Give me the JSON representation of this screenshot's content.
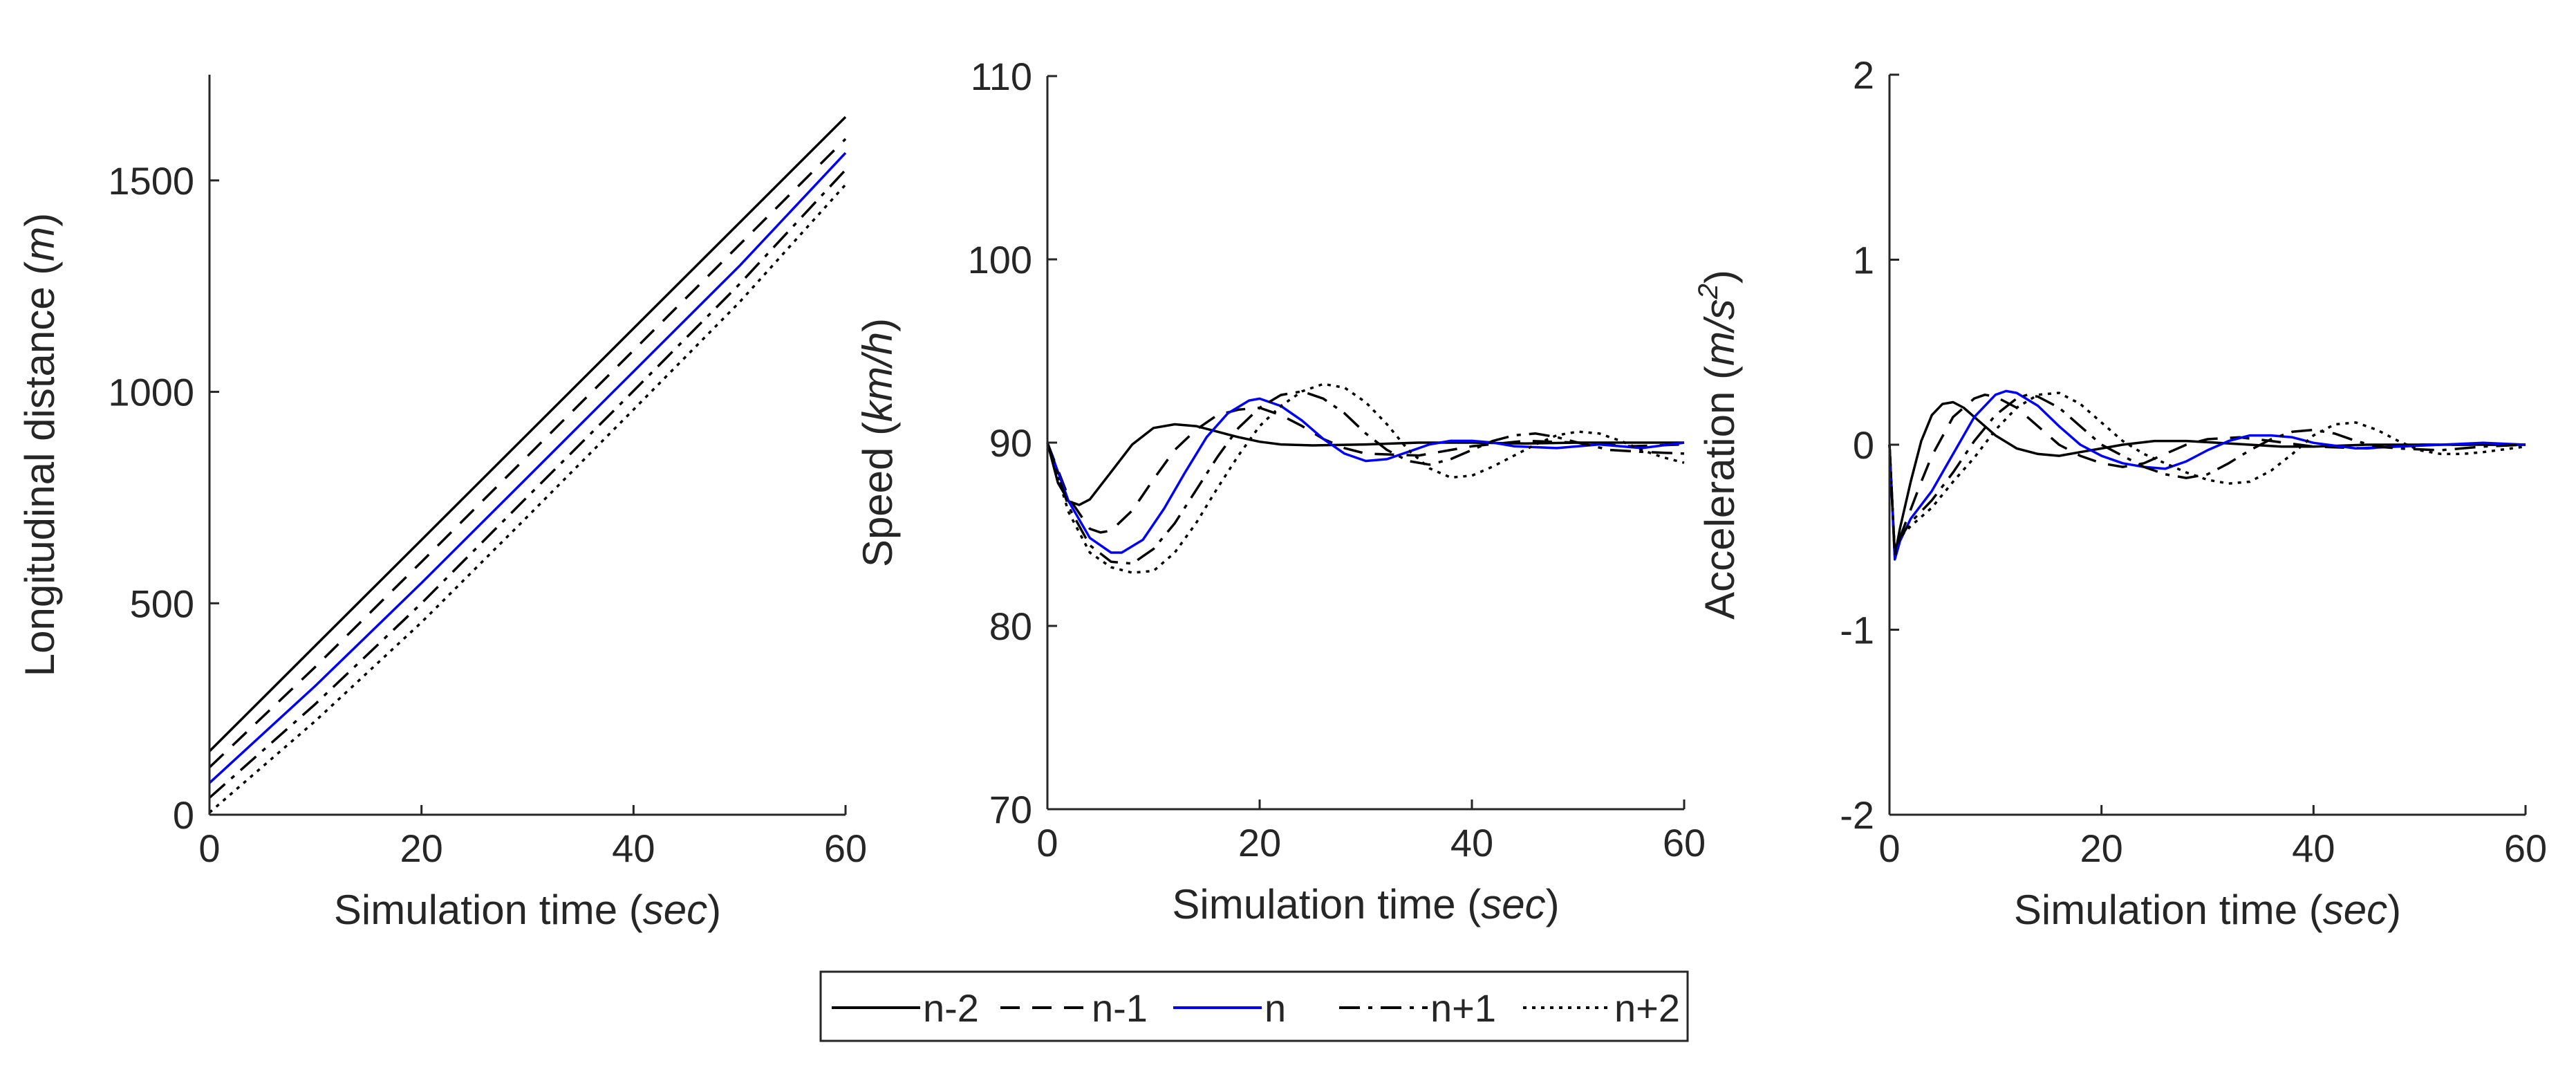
{
  "figure": {
    "legend": [
      {
        "label": "n-2",
        "style": "solid",
        "color": "#000000"
      },
      {
        "label": "n-1",
        "style": "dashed",
        "color": "#000000"
      },
      {
        "label": "n",
        "style": "solid",
        "color": "#0000ff"
      },
      {
        "label": "n+1",
        "style": "dashdot",
        "color": "#000000"
      },
      {
        "label": "n+2",
        "style": "dotted",
        "color": "#000000"
      }
    ]
  },
  "chart_data": [
    {
      "type": "line",
      "title": "",
      "xlabel_main": "Simulation time (",
      "xlabel_unit": "sec",
      "xlabel_close": ")",
      "ylabel_main": "Longitudinal distance (",
      "ylabel_unit": "m",
      "ylabel_close": ")",
      "xlim": [
        0,
        60
      ],
      "ylim": [
        0,
        1750
      ],
      "xticks": [
        0,
        20,
        40,
        60
      ],
      "yticks": [
        0,
        500,
        1000,
        1500
      ],
      "grid": false,
      "series": [
        {
          "name": "n-2",
          "x": [
            0,
            10,
            20,
            30,
            40,
            50,
            60
          ],
          "y": [
            150,
            400,
            650,
            900,
            1150,
            1400,
            1650
          ]
        },
        {
          "name": "n-1",
          "x": [
            0,
            10,
            20,
            30,
            40,
            50,
            60
          ],
          "y": [
            112,
            350,
            598,
            848,
            1098,
            1348,
            1598
          ]
        },
        {
          "name": "n",
          "x": [
            0,
            10,
            20,
            30,
            40,
            50,
            60
          ],
          "y": [
            75,
            305,
            548,
            798,
            1048,
            1298,
            1565
          ]
        },
        {
          "name": "n+1",
          "x": [
            0,
            10,
            20,
            30,
            40,
            50,
            60
          ],
          "y": [
            40,
            262,
            500,
            752,
            1002,
            1255,
            1525
          ]
        },
        {
          "name": "n+2",
          "x": [
            0,
            10,
            20,
            30,
            40,
            50,
            60
          ],
          "y": [
            5,
            222,
            455,
            705,
            958,
            1212,
            1490
          ]
        }
      ]
    },
    {
      "type": "line",
      "title": "",
      "xlabel_main": "Simulation time (",
      "xlabel_unit": "sec",
      "xlabel_close": ")",
      "ylabel_main": "Speed (",
      "ylabel_unit": "km/h",
      "ylabel_close": ")",
      "xlim": [
        0,
        60
      ],
      "ylim": [
        70,
        110
      ],
      "xticks": [
        0,
        20,
        40,
        60
      ],
      "yticks": [
        70,
        80,
        90,
        100,
        110
      ],
      "grid": false,
      "series": [
        {
          "name": "n-2",
          "x": [
            0,
            1,
            2,
            3,
            4,
            6,
            8,
            10,
            12,
            14,
            16,
            18,
            20,
            22,
            25,
            30,
            35,
            40,
            45,
            50,
            55,
            60
          ],
          "y": [
            90,
            87.8,
            86.8,
            86.6,
            86.9,
            88.4,
            89.9,
            90.8,
            91.0,
            90.9,
            90.6,
            90.3,
            90.05,
            89.9,
            89.85,
            89.9,
            90.0,
            90.0,
            89.95,
            90.0,
            90.0,
            90.0
          ]
        },
        {
          "name": "n-1",
          "x": [
            0,
            2,
            4,
            5,
            6,
            8,
            10,
            12,
            14,
            16,
            18,
            20,
            22,
            24,
            26,
            28,
            30,
            35,
            40,
            45,
            50,
            55,
            60
          ],
          "y": [
            90,
            87.0,
            85.3,
            85.1,
            85.2,
            86.3,
            88.0,
            89.6,
            90.7,
            91.5,
            91.8,
            91.9,
            91.5,
            90.9,
            90.2,
            89.7,
            89.4,
            89.3,
            89.8,
            90.1,
            90.0,
            89.8,
            89.9
          ]
        },
        {
          "name": "n",
          "x": [
            0,
            2,
            4,
            6,
            7,
            9,
            11,
            13,
            15,
            17,
            19,
            20,
            22,
            24,
            26,
            28,
            30,
            32,
            34,
            36,
            38,
            40,
            42,
            44,
            48,
            52,
            56,
            60
          ],
          "y": [
            90,
            86.8,
            84.8,
            84.0,
            84.0,
            84.7,
            86.4,
            88.4,
            90.3,
            91.6,
            92.3,
            92.4,
            92.0,
            91.2,
            90.2,
            89.4,
            89.0,
            89.1,
            89.5,
            89.9,
            90.1,
            90.1,
            90.0,
            89.8,
            89.7,
            89.9,
            89.7,
            90.0
          ]
        },
        {
          "name": "n+1",
          "x": [
            0,
            2,
            4,
            6,
            8,
            10,
            12,
            14,
            16,
            18,
            20,
            22,
            24,
            26,
            28,
            30,
            32,
            34,
            36,
            38,
            40,
            42,
            44,
            46,
            48,
            50,
            53,
            56,
            60
          ],
          "y": [
            90,
            86.5,
            84.4,
            83.5,
            83.4,
            84.2,
            85.6,
            87.4,
            89.2,
            90.8,
            91.9,
            92.6,
            92.8,
            92.4,
            91.6,
            90.5,
            89.6,
            89.0,
            88.8,
            89.1,
            89.6,
            90.1,
            90.4,
            90.5,
            90.3,
            90.0,
            89.6,
            89.5,
            89.4
          ]
        },
        {
          "name": "n+2",
          "x": [
            0,
            2,
            4,
            6,
            8,
            10,
            12,
            14,
            16,
            18,
            20,
            22,
            24,
            26,
            28,
            30,
            32,
            34,
            36,
            38,
            40,
            42,
            44,
            46,
            48,
            50,
            52,
            54,
            56,
            58,
            60
          ],
          "y": [
            90,
            86.2,
            84.0,
            83.2,
            82.9,
            83.0,
            84.0,
            85.6,
            87.5,
            89.3,
            90.9,
            92.0,
            92.8,
            93.2,
            93.0,
            92.2,
            91.0,
            89.6,
            88.6,
            88.1,
            88.2,
            88.7,
            89.3,
            89.9,
            90.4,
            90.6,
            90.5,
            90.1,
            89.6,
            89.2,
            88.9
          ]
        }
      ]
    },
    {
      "type": "line",
      "title": "",
      "xlabel_main": "Simulation time (",
      "xlabel_unit": "sec",
      "xlabel_close": ")",
      "ylabel_main": "Acceleration (",
      "ylabel_unit": "m/s",
      "ylabel_sup": "2",
      "ylabel_close": ")",
      "xlim": [
        0,
        60
      ],
      "ylim": [
        -2,
        2
      ],
      "xticks": [
        0,
        20,
        40,
        60
      ],
      "yticks": [
        -2,
        -1,
        0,
        1,
        2
      ],
      "grid": false,
      "series": [
        {
          "name": "n-2",
          "x": [
            0,
            0.5,
            1,
            2,
            3,
            4,
            5,
            6,
            7,
            8,
            10,
            12,
            14,
            16,
            18,
            20,
            22,
            25,
            28,
            31,
            34,
            37,
            40,
            45,
            50,
            55,
            60
          ],
          "y": [
            0,
            -0.6,
            -0.45,
            -0.2,
            0.02,
            0.16,
            0.22,
            0.23,
            0.2,
            0.15,
            0.05,
            -0.02,
            -0.05,
            -0.06,
            -0.04,
            -0.02,
            0.0,
            0.02,
            0.02,
            0.01,
            0.0,
            -0.01,
            -0.01,
            0.0,
            0.0,
            0.0,
            0.0
          ]
        },
        {
          "name": "n-1",
          "x": [
            0,
            0.5,
            1,
            2,
            3,
            4,
            6,
            8,
            9,
            10,
            12,
            14,
            16,
            18,
            20,
            22,
            24,
            26,
            28,
            30,
            33,
            36,
            40,
            45,
            50,
            55,
            60
          ],
          "y": [
            0,
            -0.6,
            -0.5,
            -0.35,
            -0.2,
            -0.06,
            0.15,
            0.25,
            0.27,
            0.26,
            0.2,
            0.1,
            0.0,
            -0.06,
            -0.1,
            -0.12,
            -0.1,
            -0.05,
            0.0,
            0.03,
            0.04,
            0.02,
            -0.01,
            -0.02,
            0.0,
            0.0,
            0.0
          ]
        },
        {
          "name": "n",
          "x": [
            0,
            0.5,
            1,
            2,
            4,
            6,
            8,
            10,
            11,
            12,
            14,
            16,
            18,
            20,
            22,
            24,
            26,
            28,
            30,
            32,
            34,
            36,
            38,
            40,
            44,
            48,
            52,
            56,
            60
          ],
          "y": [
            0,
            -0.62,
            -0.52,
            -0.4,
            -0.25,
            -0.05,
            0.15,
            0.27,
            0.29,
            0.28,
            0.21,
            0.1,
            0.0,
            -0.06,
            -0.1,
            -0.12,
            -0.13,
            -0.09,
            -0.03,
            0.02,
            0.05,
            0.05,
            0.04,
            0.01,
            -0.02,
            -0.01,
            0.0,
            0.01,
            0.0
          ]
        },
        {
          "name": "n+1",
          "x": [
            0,
            0.5,
            1,
            2,
            4,
            6,
            8,
            10,
            12,
            13,
            14,
            16,
            18,
            20,
            22,
            24,
            26,
            28,
            30,
            32,
            34,
            36,
            38,
            40,
            42,
            44,
            46,
            48,
            52,
            56,
            60
          ],
          "y": [
            0,
            -0.6,
            -0.5,
            -0.42,
            -0.3,
            -0.15,
            0.02,
            0.16,
            0.25,
            0.27,
            0.26,
            0.2,
            0.1,
            0.0,
            -0.06,
            -0.12,
            -0.16,
            -0.18,
            -0.16,
            -0.1,
            -0.03,
            0.03,
            0.07,
            0.08,
            0.06,
            0.02,
            -0.01,
            -0.02,
            -0.03,
            -0.01,
            0.0
          ]
        },
        {
          "name": "n+2",
          "x": [
            0,
            0.5,
            1,
            2,
            4,
            6,
            8,
            10,
            12,
            14,
            16,
            18,
            20,
            22,
            24,
            26,
            28,
            30,
            32,
            34,
            36,
            38,
            40,
            42,
            44,
            46,
            48,
            50,
            52,
            54,
            56,
            60
          ],
          "y": [
            0,
            -0.58,
            -0.5,
            -0.44,
            -0.34,
            -0.2,
            -0.07,
            0.08,
            0.2,
            0.27,
            0.28,
            0.22,
            0.12,
            0.02,
            -0.05,
            -0.1,
            -0.15,
            -0.19,
            -0.21,
            -0.2,
            -0.14,
            -0.05,
            0.05,
            0.11,
            0.12,
            0.08,
            0.02,
            -0.03,
            -0.05,
            -0.05,
            -0.04,
            -0.01
          ]
        }
      ]
    }
  ]
}
